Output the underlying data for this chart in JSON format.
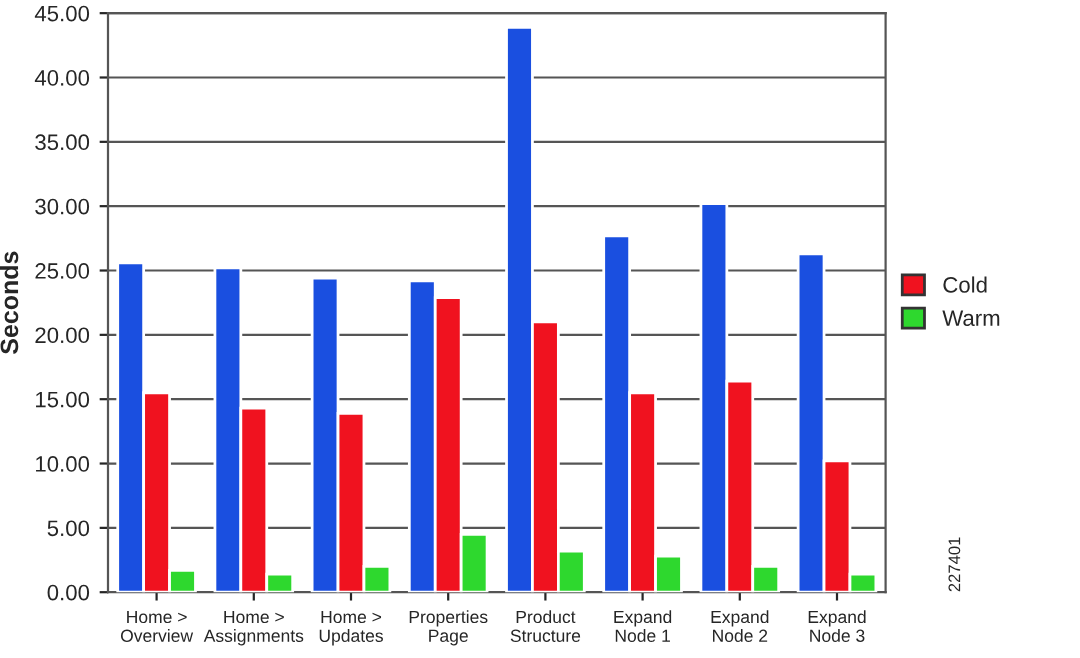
{
  "chart_data": {
    "type": "bar",
    "ylabel": "Seconds",
    "categories": [
      "Home >\nOverview",
      "Home >\nAssignments",
      "Home >\nUpdates",
      "Properties\nPage",
      "Product\nStructure",
      "Expand\nNode 1",
      "Expand\nNode 2",
      "Expand\nNode 3"
    ],
    "series": [
      {
        "color": "#1a4fe0",
        "values": [
          25.6,
          25.2,
          24.4,
          24.2,
          43.9,
          27.7,
          30.2,
          26.3
        ]
      },
      {
        "name": "Cold",
        "color": "#f0121f",
        "values": [
          15.5,
          14.3,
          13.9,
          22.9,
          21.0,
          15.5,
          16.4,
          10.2
        ]
      },
      {
        "name": "Warm",
        "color": "#2ed82e",
        "values": [
          1.7,
          1.4,
          2.0,
          4.5,
          3.2,
          2.8,
          2.0,
          1.4
        ]
      }
    ],
    "ylim": [
      0,
      45
    ],
    "yticks": [
      {
        "value": 0,
        "label": "0.00"
      },
      {
        "value": 5,
        "label": "5.00"
      },
      {
        "value": 10,
        "label": "10.00"
      },
      {
        "value": 15,
        "label": "15.00"
      },
      {
        "value": 20,
        "label": "20.00"
      },
      {
        "value": 25,
        "label": "25.00"
      },
      {
        "value": 30,
        "label": "30.00"
      },
      {
        "value": 35,
        "label": "35.00"
      },
      {
        "value": 40,
        "label": "40.00"
      },
      {
        "value": 45,
        "label": "45.00"
      }
    ],
    "grid": "y",
    "legend": "right",
    "annotations": [
      "227401"
    ]
  }
}
